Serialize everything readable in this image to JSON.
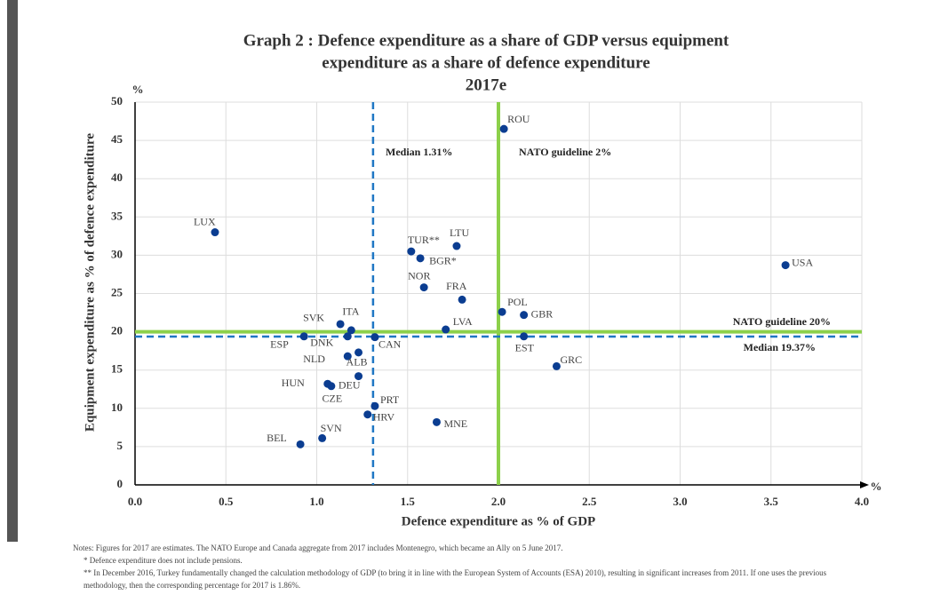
{
  "chart_data": {
    "type": "scatter",
    "title": [
      "Graph 2 : Defence expenditure as a share of GDP versus equipment",
      "expenditure as a share of defence expenditure"
    ],
    "subtitle": "2017e",
    "x_label": "Defence expenditure as % of GDP",
    "y_label": "Equipment expenditure as % of defence expenditure",
    "x_unit": "%",
    "y_unit": "%",
    "color": "#0b3d91",
    "labels": [
      "LUX",
      "ROU",
      "TUR**",
      "LTU",
      "BGR*",
      "USA",
      "NOR",
      "FRA",
      "POL",
      "GBR",
      "SVK",
      "ITA",
      "LVA",
      "ESP",
      "DNK",
      "CAN",
      "EST",
      "NLD",
      "ALB",
      "GRC",
      "HUN",
      "DEU",
      "CZE",
      "PRT",
      "HRV",
      "MNE",
      "SVN",
      "BEL"
    ],
    "x": [
      0.44,
      2.03,
      1.52,
      1.77,
      1.57,
      3.58,
      1.59,
      1.8,
      2.02,
      2.14,
      1.13,
      1.19,
      1.71,
      0.93,
      1.17,
      1.32,
      2.14,
      1.17,
      1.23,
      2.32,
      1.06,
      1.08,
      1.23,
      1.32,
      1.28,
      1.66,
      1.03,
      0.91
    ],
    "values": [
      33.0,
      46.5,
      30.5,
      31.2,
      29.6,
      28.7,
      25.8,
      24.2,
      22.6,
      22.2,
      21.0,
      20.2,
      20.3,
      19.4,
      19.4,
      19.3,
      19.4,
      16.8,
      17.3,
      15.5,
      13.2,
      12.9,
      14.2,
      10.3,
      9.2,
      8.2,
      6.1,
      5.3
    ],
    "xlim": [
      0,
      4
    ],
    "ylim": [
      0,
      50
    ],
    "xticks": [
      {
        "value": 0,
        "label": "0.0"
      },
      0.5,
      {
        "value": 1,
        "label": "1.0"
      },
      1.5,
      {
        "value": 2,
        "label": "2.0"
      },
      2.5,
      {
        "value": 3,
        "label": "3.0"
      },
      3.5,
      {
        "value": 4,
        "label": "4.0"
      }
    ],
    "yticks": [
      0,
      5,
      10,
      15,
      20,
      25,
      30,
      35,
      40,
      45,
      50
    ],
    "grid": true,
    "reference_lines": [
      {
        "axis": "x",
        "value": 1.31,
        "label": "Median 1.31%",
        "color": "#1f77c4",
        "style": "dashed"
      },
      {
        "axis": "x",
        "value": 2,
        "label": "NATO guideline 2%",
        "color": "#8cd04a",
        "style": "solid"
      },
      {
        "axis": "y",
        "value": 20,
        "label": "NATO guideline 20%",
        "color": "#8cd04a",
        "style": "solid"
      },
      {
        "axis": "y",
        "value": 19.37,
        "label": "Median 19.37%",
        "color": "#1f77c4",
        "style": "dashed"
      }
    ]
  },
  "notes": [
    "Notes: Figures for 2017 are estimates. The NATO Europe and Canada aggregate from 2017 includes Montenegro, which became an Ally on 5 June 2017.",
    "*   Defence expenditure does not include pensions.",
    "** In December 2016, Turkey fundamentally changed the calculation methodology of GDP (to bring it in line with the European System of Accounts (ESA) 2010), resulting in significant increases from 2011. If one uses the previous methodology, then the corresponding percentage for 2017 is 1.86%."
  ]
}
